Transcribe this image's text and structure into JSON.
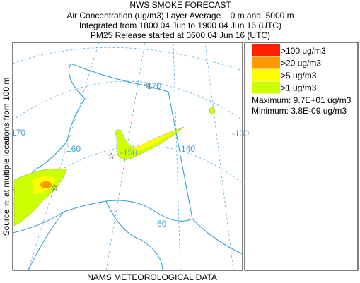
{
  "header": {
    "title": "NWS SMOKE FORECAST",
    "lines": [
      "Air Concentration (ug/m3) Layer Average    0 m and  5000 m",
      "Integrated from 1800 04 Jun to 1900 04 Jun 16 (UTC)",
      "PM25 Release started at 0600 04 Jun 16 (UTC)"
    ]
  },
  "side_label": "Source ☆ at multiple locations from 100 m",
  "footer": "NAMS METEOROLOGICAL DATA",
  "map": {
    "grid_labels": [
      "-170",
      "170",
      "-160",
      "-150",
      "-140",
      "-130",
      "60"
    ]
  },
  "legend": {
    "items": [
      {
        "label": ">100 ug/m3",
        "color": "#ff2200"
      },
      {
        "label": ">20 ug/m3",
        "color": "#ff9900"
      },
      {
        "label": ">5 ug/m3",
        "color": "#ffff00"
      },
      {
        "label": ">1 ug/m3",
        "color": "#ccff00"
      }
    ],
    "maximum": "Maximum: 9.7E+01 ug/m3",
    "minimum": "Minimum: 3.8E-09 ug/m3"
  }
}
